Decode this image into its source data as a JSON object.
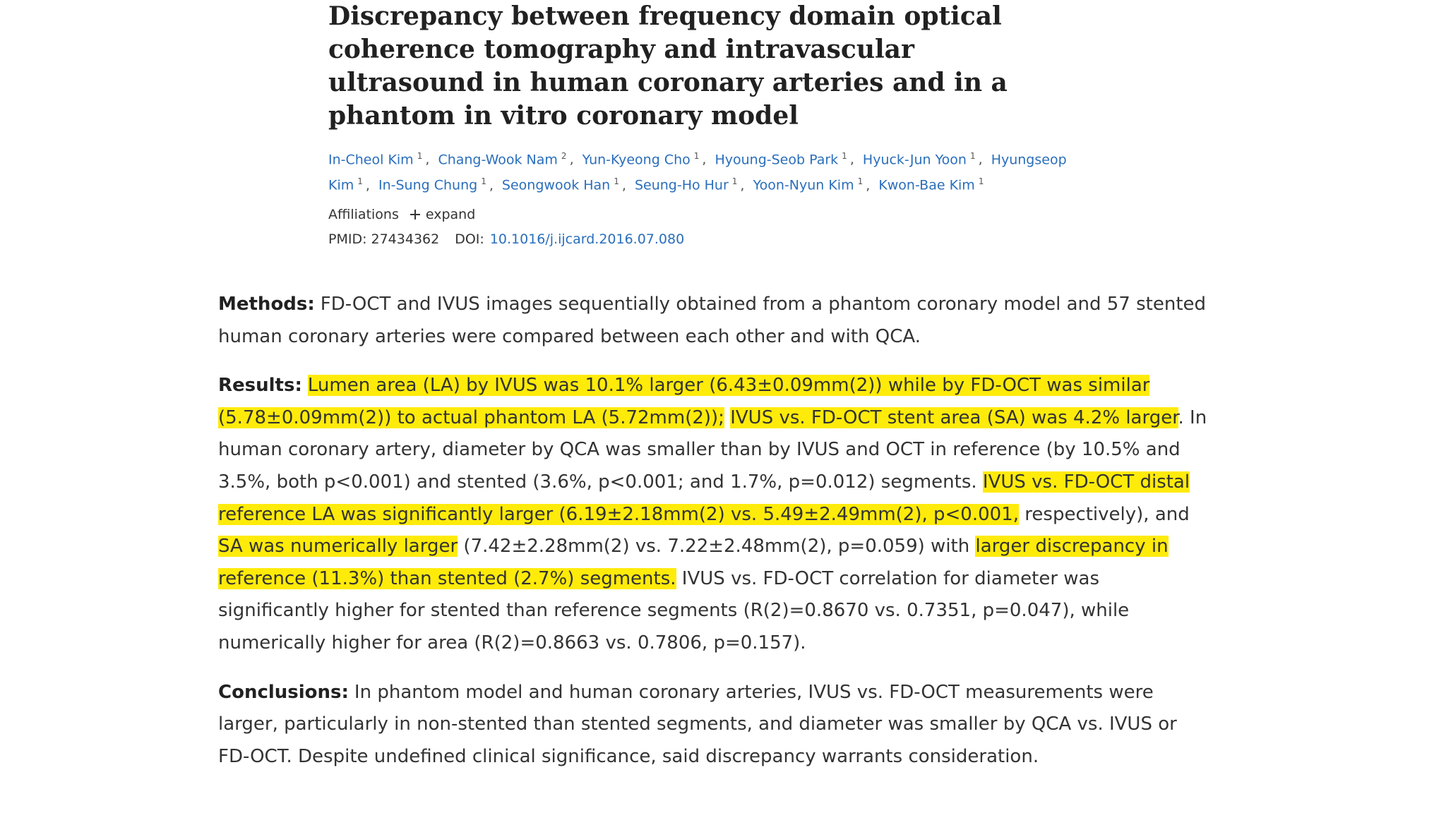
{
  "header": {
    "title": "Discrepancy between frequency domain optical coherence tomography and intravascular ultrasound in human coronary arteries and in a phantom in vitro coronary model",
    "authors": [
      {
        "name": "In-Cheol Kim",
        "aff": "1"
      },
      {
        "name": "Chang-Wook Nam",
        "aff": "2"
      },
      {
        "name": "Yun-Kyeong Cho",
        "aff": "1"
      },
      {
        "name": "Hyoung-Seob Park",
        "aff": "1"
      },
      {
        "name": "Hyuck-Jun Yoon",
        "aff": "1"
      },
      {
        "name": "Hyungseop Kim",
        "aff": "1"
      },
      {
        "name": "In-Sung Chung",
        "aff": "1"
      },
      {
        "name": "Seongwook Han",
        "aff": "1"
      },
      {
        "name": "Seung-Ho Hur",
        "aff": "1"
      },
      {
        "name": "Yoon-Nyun Kim",
        "aff": "1"
      },
      {
        "name": "Kwon-Bae Kim",
        "aff": "1"
      }
    ],
    "author_separator": ",",
    "affiliations_label": "Affiliations",
    "expand_label": "expand",
    "pmid_label": "PMID:",
    "pmid": "27434362",
    "doi_label": "DOI:",
    "doi": "10.1016/j.ijcard.2016.07.080"
  },
  "abstract": [
    {
      "label": "Methods:",
      "segments": [
        {
          "text": "FD-OCT and IVUS images sequentially obtained from a phantom coronary model and 57 stented human coronary arteries were compared between each other and with QCA.",
          "highlight": false
        }
      ]
    },
    {
      "label": "Results:",
      "segments": [
        {
          "text": "Lumen area (LA) by IVUS was 10.1% larger (6.43±0.09mm(2)) while by FD-OCT was similar (5.78±0.09mm(2)) to actual phantom LA (5.72mm(2));",
          "highlight": true
        },
        {
          "text": " ",
          "highlight": false
        },
        {
          "text": "IVUS vs. FD-OCT stent area (SA) was 4.2% larger",
          "highlight": true
        },
        {
          "text": ". In human coronary artery, diameter by QCA was smaller than by IVUS and OCT in reference (by 10.5% and 3.5%, both p<0.001) and stented (3.6%, p<0.001; and 1.7%, p=0.012) segments. ",
          "highlight": false
        },
        {
          "text": "IVUS vs. FD-OCT distal reference LA was significantly larger (6.19±2.18mm(2) vs. 5.49±2.49mm(2), p<0.001,",
          "highlight": true
        },
        {
          "text": " respectively), and ",
          "highlight": false
        },
        {
          "text": "SA was numerically larger",
          "highlight": true
        },
        {
          "text": " (7.42±2.28mm(2) vs. 7.22±2.48mm(2), p=0.059) with ",
          "highlight": false
        },
        {
          "text": "larger discrepancy in reference (11.3%) than stented (2.7%) segments.",
          "highlight": true
        },
        {
          "text": " IVUS vs. FD-OCT correlation for diameter was significantly higher for stented than reference segments (R(2)=0.8670 vs. 0.7351, p=0.047), while numerically higher for area (R(2)=0.8663 vs. 0.7806, p=0.157).",
          "highlight": false
        }
      ]
    },
    {
      "label": "Conclusions:",
      "segments": [
        {
          "text": "In phantom model and human coronary arteries, IVUS vs. FD-OCT measurements were larger, particularly in non-stented than stented segments, and diameter was smaller by QCA vs. IVUS or FD-OCT. Despite undefined clinical significance, said discrepancy warrants consideration.",
          "highlight": false
        }
      ]
    }
  ]
}
